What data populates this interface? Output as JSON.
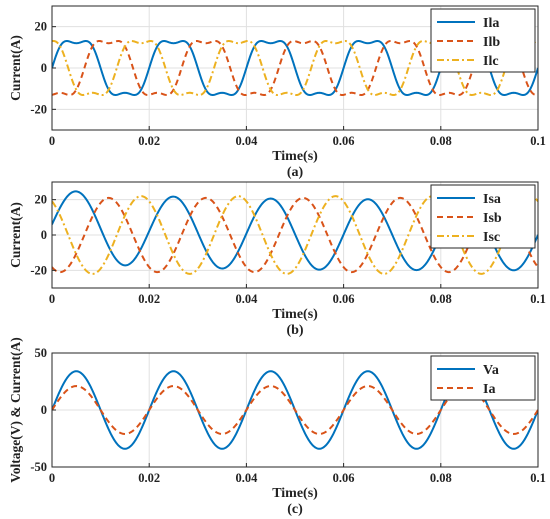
{
  "chart_data": [
    {
      "type": "line",
      "caption": "(a)",
      "xlabel": "Time(s)",
      "ylabel": "Current(A)",
      "xlim": [
        0,
        0.1
      ],
      "ylim": [
        -30,
        30
      ],
      "xticks": [
        0,
        0.02,
        0.04,
        0.06,
        0.08,
        0.1
      ],
      "xtick_labels": [
        "0",
        "0.02",
        "0.04",
        "0.06",
        "0.08",
        "0.1"
      ],
      "yticks": [
        -20,
        0,
        20
      ],
      "ytick_labels": [
        "-20",
        "0",
        "20"
      ],
      "grid": true,
      "legend_position": "top-right",
      "frequency_hz": 50,
      "series": [
        {
          "name": "Ila",
          "color": "#0072bd",
          "dash": "solid",
          "amplitude": 15,
          "phase_deg": 0,
          "third_harmonic": 3
        },
        {
          "name": "Ilb",
          "color": "#d95319",
          "dash": "dashed",
          "amplitude": 15,
          "phase_deg": -120,
          "third_harmonic": 3
        },
        {
          "name": "Ilc",
          "color": "#edb120",
          "dash": "dashdot",
          "amplitude": 15,
          "phase_deg": 120,
          "third_harmonic": 3
        }
      ]
    },
    {
      "type": "line",
      "caption": "(b)",
      "xlabel": "Time(s)",
      "ylabel": "Current(A)",
      "xlim": [
        0,
        0.1
      ],
      "ylim": [
        -30,
        30
      ],
      "xticks": [
        0,
        0.02,
        0.04,
        0.06,
        0.08,
        0.1
      ],
      "xtick_labels": [
        "0",
        "0.02",
        "0.04",
        "0.06",
        "0.08",
        "0.1"
      ],
      "yticks": [
        -20,
        0,
        20
      ],
      "ytick_labels": [
        "-20",
        "0",
        "20"
      ],
      "grid": true,
      "legend_position": "top-right",
      "frequency_hz": 50,
      "series": [
        {
          "name": "Isa",
          "color": "#0072bd",
          "dash": "solid",
          "amplitude": 20,
          "phase_deg": 0,
          "decaying_offset": 6,
          "decay_tau": 0.02
        },
        {
          "name": "Isb",
          "color": "#d95319",
          "dash": "dashed",
          "amplitude": 21,
          "phase_deg": -120
        },
        {
          "name": "Isc",
          "color": "#edb120",
          "dash": "dashdot",
          "amplitude": 22,
          "phase_deg": 120
        }
      ]
    },
    {
      "type": "line",
      "caption": "(c)",
      "xlabel": "Time(s)",
      "ylabel": "Voltage(V) & Current(A)",
      "xlim": [
        0,
        0.1
      ],
      "ylim": [
        -50,
        50
      ],
      "xticks": [
        0,
        0.02,
        0.04,
        0.06,
        0.08,
        0.1
      ],
      "xtick_labels": [
        "0",
        "0.02",
        "0.04",
        "0.06",
        "0.08",
        "0.1"
      ],
      "yticks": [
        -50,
        0,
        50
      ],
      "ytick_labels": [
        "-50",
        "0",
        "50"
      ],
      "grid": true,
      "legend_position": "top-right",
      "frequency_hz": 50,
      "series": [
        {
          "name": "Va",
          "color": "#0072bd",
          "dash": "solid",
          "amplitude": 34,
          "phase_deg": 0
        },
        {
          "name": "Ia",
          "color": "#d95319",
          "dash": "dashed",
          "amplitude": 21,
          "phase_deg": 0
        }
      ]
    }
  ]
}
